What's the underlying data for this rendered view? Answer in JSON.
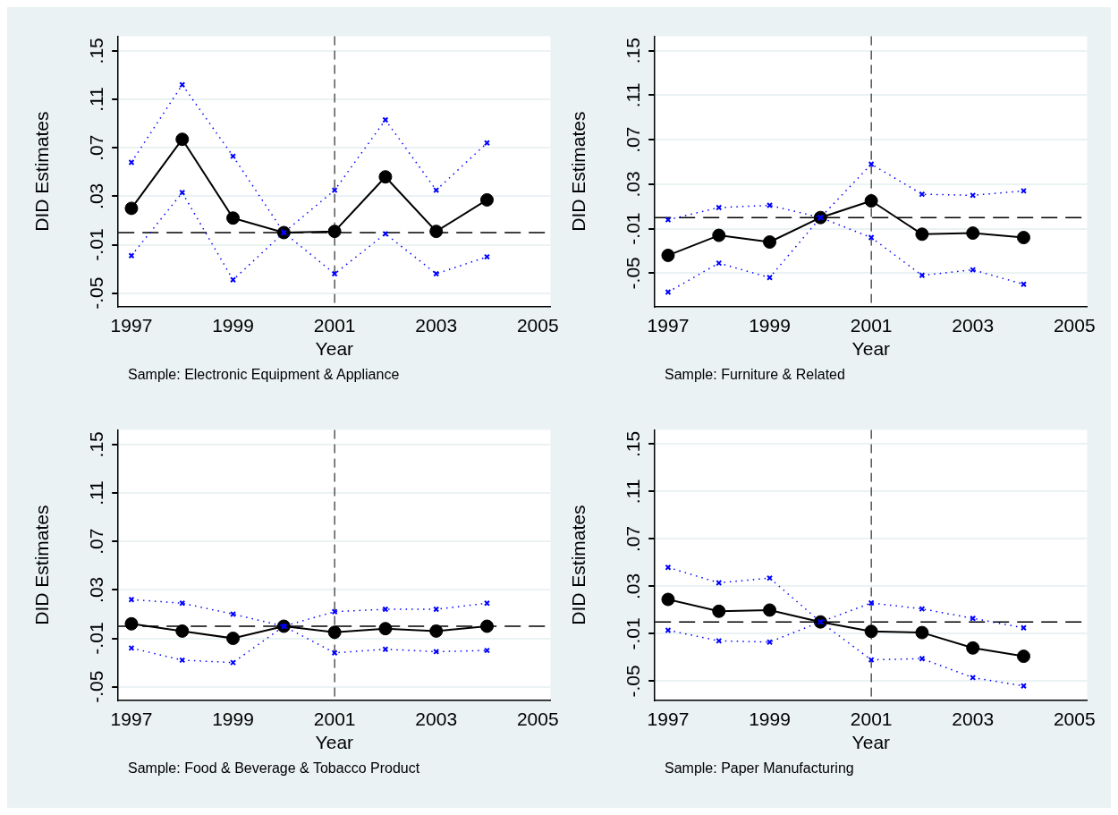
{
  "chart_data": [
    {
      "type": "line",
      "xlabel": "Year",
      "ylabel": "DID Estimates",
      "annotations": [
        "Sample: Electronic Equipment & Appliance"
      ],
      "x": [
        1997,
        1998,
        1999,
        2000,
        2001,
        2002,
        2003,
        2004
      ],
      "xlim": [
        1996.74,
        2005.25
      ],
      "xticks": [
        1997,
        1999,
        2001,
        2003,
        2005
      ],
      "ylim": [
        -0.061,
        0.162
      ],
      "yticks": [
        {
          "value": -0.05,
          "label": "-.05"
        },
        {
          "value": -0.01,
          "label": "-.01"
        },
        {
          "value": 0.03,
          "label": ".03"
        },
        {
          "value": 0.07,
          "label": ".07"
        },
        {
          "value": 0.11,
          "label": ".11"
        },
        {
          "value": 0.15,
          "label": ".15"
        }
      ],
      "grid": "y",
      "series": [
        {
          "color": "#000000",
          "marker": "circle",
          "line_style": "solid",
          "values": [
            0.02,
            0.077,
            0.012,
            0,
            0.001,
            0.046,
            0.001,
            0.027
          ]
        },
        {
          "color": "#0000ff",
          "marker": "cross",
          "line_style": "dotted",
          "values": [
            0.058,
            0.122,
            0.063,
            0,
            0.035,
            0.093,
            0.035,
            0.074
          ]
        },
        {
          "color": "#0000ff",
          "marker": "cross",
          "line_style": "dotted",
          "values": [
            -0.019,
            0.033,
            -0.039,
            0,
            -0.034,
            -0.001,
            -0.034,
            -0.02
          ]
        }
      ],
      "ref_lines": [
        {
          "axis": "y",
          "value": 0,
          "color": "#000000",
          "line_style": "dashed"
        },
        {
          "axis": "x",
          "value": 2001,
          "color": "#000000",
          "line_style": "dashed"
        }
      ]
    },
    {
      "type": "line",
      "xlabel": "Year",
      "ylabel": "DID Estimates",
      "annotations": [
        "Sample: Furniture & Related"
      ],
      "x": [
        1997,
        1998,
        1999,
        2000,
        2001,
        2002,
        2003,
        2004
      ],
      "xlim": [
        1996.74,
        2005.25
      ],
      "xticks": [
        1997,
        1999,
        2001,
        2003,
        2005
      ],
      "ylim": [
        -0.08,
        0.163
      ],
      "yticks": [
        {
          "value": -0.05,
          "label": "-.05"
        },
        {
          "value": -0.01,
          "label": "-.01"
        },
        {
          "value": 0.03,
          "label": ".03"
        },
        {
          "value": 0.07,
          "label": ".07"
        },
        {
          "value": 0.11,
          "label": ".11"
        },
        {
          "value": 0.15,
          "label": ".15"
        }
      ],
      "grid": "y",
      "series": [
        {
          "color": "#000000",
          "marker": "circle",
          "line_style": "solid",
          "values": [
            -0.034,
            -0.016,
            -0.022,
            0,
            0.015,
            -0.015,
            -0.014,
            -0.018
          ]
        },
        {
          "color": "#0000ff",
          "marker": "cross",
          "line_style": "dotted",
          "values": [
            -0.002,
            0.009,
            0.011,
            0,
            0.048,
            0.021,
            0.02,
            0.024
          ]
        },
        {
          "color": "#0000ff",
          "marker": "cross",
          "line_style": "dotted",
          "values": [
            -0.067,
            -0.041,
            -0.054,
            0,
            -0.018,
            -0.052,
            -0.047,
            -0.06
          ]
        }
      ],
      "ref_lines": [
        {
          "axis": "y",
          "value": 0,
          "color": "#000000",
          "line_style": "dashed"
        },
        {
          "axis": "x",
          "value": 2001,
          "color": "#000000",
          "line_style": "dashed"
        }
      ]
    },
    {
      "type": "line",
      "xlabel": "Year",
      "ylabel": "DID Estimates",
      "annotations": [
        "Sample: Food & Beverage & Tobacco Product"
      ],
      "x": [
        1997,
        1998,
        1999,
        2000,
        2001,
        2002,
        2003,
        2004
      ],
      "xlim": [
        1996.74,
        2005.25
      ],
      "xticks": [
        1997,
        1999,
        2001,
        2003,
        2005
      ],
      "ylim": [
        -0.061,
        0.162
      ],
      "yticks": [
        {
          "value": -0.05,
          "label": "-.05"
        },
        {
          "value": -0.01,
          "label": "-.01"
        },
        {
          "value": 0.03,
          "label": ".03"
        },
        {
          "value": 0.07,
          "label": ".07"
        },
        {
          "value": 0.11,
          "label": ".11"
        },
        {
          "value": 0.15,
          "label": ".15"
        }
      ],
      "grid": "y",
      "series": [
        {
          "color": "#000000",
          "marker": "circle",
          "line_style": "solid",
          "values": [
            0.002,
            -0.004,
            -0.01,
            0,
            -0.005,
            -0.002,
            -0.004,
            0
          ]
        },
        {
          "color": "#0000ff",
          "marker": "cross",
          "line_style": "dotted",
          "values": [
            0.022,
            0.019,
            0.01,
            0,
            0.012,
            0.014,
            0.014,
            0.019
          ]
        },
        {
          "color": "#0000ff",
          "marker": "cross",
          "line_style": "dotted",
          "values": [
            -0.018,
            -0.028,
            -0.03,
            0,
            -0.022,
            -0.019,
            -0.021,
            -0.02
          ]
        }
      ],
      "ref_lines": [
        {
          "axis": "y",
          "value": 0,
          "color": "#000000",
          "line_style": "dashed"
        },
        {
          "axis": "x",
          "value": 2001,
          "color": "#000000",
          "line_style": "dashed"
        }
      ]
    },
    {
      "type": "line",
      "xlabel": "Year",
      "ylabel": "DID Estimates",
      "annotations": [
        "Sample: Paper Manufacturing"
      ],
      "x": [
        1997,
        1998,
        1999,
        2000,
        2001,
        2002,
        2003,
        2004
      ],
      "xlim": [
        1996.74,
        2005.25
      ],
      "xticks": [
        1997,
        1999,
        2001,
        2003,
        2005
      ],
      "ylim": [
        -0.066,
        0.162
      ],
      "yticks": [
        {
          "value": -0.05,
          "label": "-.05"
        },
        {
          "value": -0.01,
          "label": "-.01"
        },
        {
          "value": 0.03,
          "label": ".03"
        },
        {
          "value": 0.07,
          "label": ".07"
        },
        {
          "value": 0.11,
          "label": ".11"
        },
        {
          "value": 0.15,
          "label": ".15"
        }
      ],
      "grid": "y",
      "series": [
        {
          "color": "#000000",
          "marker": "circle",
          "line_style": "solid",
          "values": [
            0.019,
            0.009,
            0.01,
            0,
            -0.008,
            -0.009,
            -0.022,
            -0.029
          ]
        },
        {
          "color": "#0000ff",
          "marker": "cross",
          "line_style": "dotted",
          "values": [
            0.046,
            0.033,
            0.037,
            0,
            0.016,
            0.011,
            0.003,
            -0.005
          ]
        },
        {
          "color": "#0000ff",
          "marker": "cross",
          "line_style": "dotted",
          "values": [
            -0.007,
            -0.016,
            -0.017,
            0,
            -0.032,
            -0.031,
            -0.047,
            -0.054
          ]
        }
      ],
      "ref_lines": [
        {
          "axis": "y",
          "value": 0,
          "color": "#000000",
          "line_style": "dashed"
        },
        {
          "axis": "x",
          "value": 2001,
          "color": "#000000",
          "line_style": "dashed"
        }
      ]
    }
  ]
}
